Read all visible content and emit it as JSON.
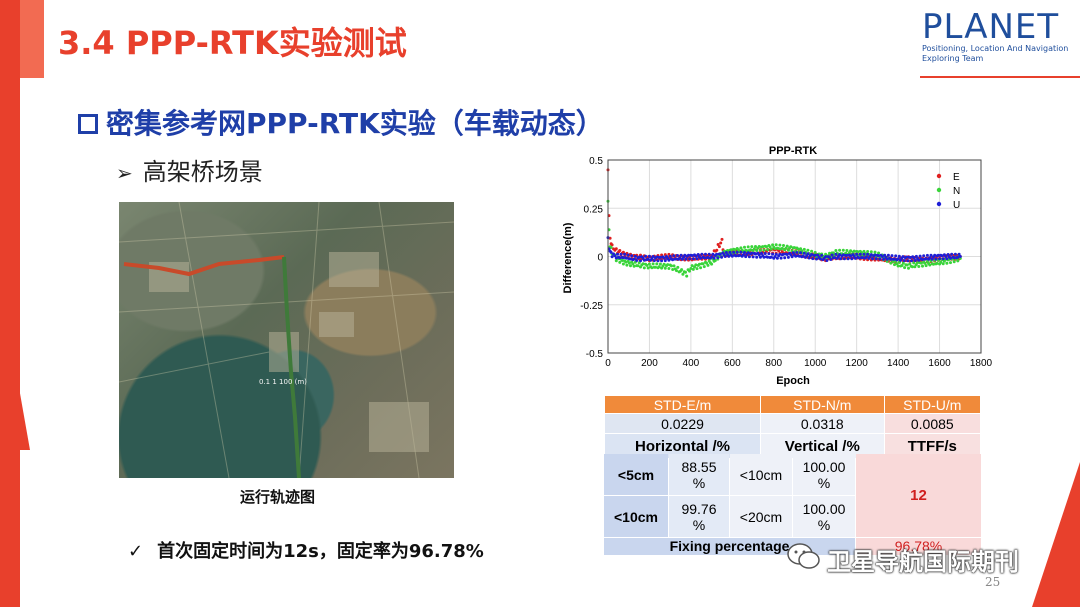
{
  "header": {
    "title": "3.4 PPP-RTK实验测试"
  },
  "logo": {
    "word": "PLANET",
    "line1": "Positioning, Location And Navigation",
    "line2": "Exploring Team"
  },
  "heading": {
    "text": "密集参考网PPP-RTK实验（车载动态）"
  },
  "subheading": {
    "text": "高架桥场景"
  },
  "map": {
    "caption": "运行轨迹图",
    "overlay_label": "0.1 1 100 (m)"
  },
  "bullet": {
    "text": "首次固定时间为12s，固定率为96.78%"
  },
  "chart_data": {
    "type": "scatter",
    "title": "PPP-RTK",
    "xlabel": "Epoch",
    "ylabel": "Difference(m)",
    "xlim": [
      0,
      1800
    ],
    "ylim": [
      -0.5,
      0.5
    ],
    "xticks": [
      "0",
      "200",
      "400",
      "600",
      "800",
      "1000",
      "1200",
      "1400",
      "1600",
      "1800"
    ],
    "yticks": [
      "0.5",
      "0.25",
      "0",
      "-0.25",
      "-0.5"
    ],
    "grid": true,
    "legend_position": "top-right",
    "series": [
      {
        "name": "E",
        "color": "#e02020",
        "x": [
          0,
          5,
          10,
          20,
          40,
          80,
          120,
          200,
          300,
          400,
          500,
          550,
          560,
          600,
          700,
          800,
          900,
          1000,
          1050,
          1100,
          1200,
          1300,
          1400,
          1450,
          1500,
          1600,
          1700
        ],
        "y": [
          0.45,
          0.2,
          0.1,
          0.05,
          0.03,
          0.01,
          0.0,
          -0.01,
          0.0,
          -0.01,
          0.0,
          0.08,
          0.01,
          0.02,
          0.02,
          0.03,
          0.02,
          0.0,
          -0.01,
          0.0,
          0.0,
          -0.01,
          -0.02,
          -0.01,
          -0.02,
          -0.01,
          0.0
        ]
      },
      {
        "name": "N",
        "color": "#3ad43a",
        "x": [
          0,
          5,
          10,
          20,
          40,
          80,
          120,
          200,
          300,
          380,
          400,
          500,
          560,
          600,
          700,
          800,
          900,
          1000,
          1050,
          1100,
          1200,
          1300,
          1400,
          1450,
          1500,
          1600,
          1700
        ],
        "y": [
          0.28,
          0.15,
          0.05,
          0.02,
          -0.01,
          -0.03,
          -0.04,
          -0.05,
          -0.05,
          -0.09,
          -0.06,
          -0.03,
          0.02,
          0.03,
          0.04,
          0.05,
          0.04,
          0.01,
          0.0,
          0.02,
          0.02,
          0.01,
          -0.04,
          -0.05,
          -0.04,
          -0.03,
          -0.01
        ]
      },
      {
        "name": "U",
        "color": "#1f1fd6",
        "x": [
          0,
          5,
          10,
          20,
          40,
          80,
          120,
          200,
          300,
          400,
          500,
          560,
          600,
          700,
          800,
          900,
          1000,
          1050,
          1100,
          1200,
          1300,
          1400,
          1500,
          1600,
          1700
        ],
        "y": [
          0.1,
          0.05,
          0.02,
          0.01,
          0.0,
          0.0,
          -0.01,
          -0.01,
          -0.01,
          0.0,
          0.0,
          0.01,
          0.01,
          0.01,
          0.0,
          0.01,
          0.0,
          -0.01,
          0.0,
          0.0,
          0.0,
          -0.01,
          -0.01,
          0.0,
          0.0
        ]
      }
    ]
  },
  "table": {
    "headers": [
      "STD-E/m",
      "STD-N/m",
      "STD-U/m"
    ],
    "values": [
      "0.0229",
      "0.0318",
      "0.0085"
    ],
    "sub_headers": [
      "Horizontal /%",
      "Vertical /%",
      "TTFF/s"
    ],
    "rows": [
      {
        "h_label": "<5cm",
        "h_val": "88.55\n%",
        "v_label": "<10cm",
        "v_val": "100.00\n%"
      },
      {
        "h_label": "<10cm",
        "h_val": "99.76\n%",
        "v_label": "<20cm",
        "v_val": "100.00\n%"
      }
    ],
    "ttff": "12",
    "fixing_label": "Fixing percentage",
    "fixing_value": "96.78%"
  },
  "watermark": {
    "text": "卫星导航国际期刊"
  },
  "page_number": "25",
  "colors": {
    "accent_red": "#e8402c",
    "heading_blue": "#1f3fa8",
    "table_orange": "#f08a3a"
  }
}
